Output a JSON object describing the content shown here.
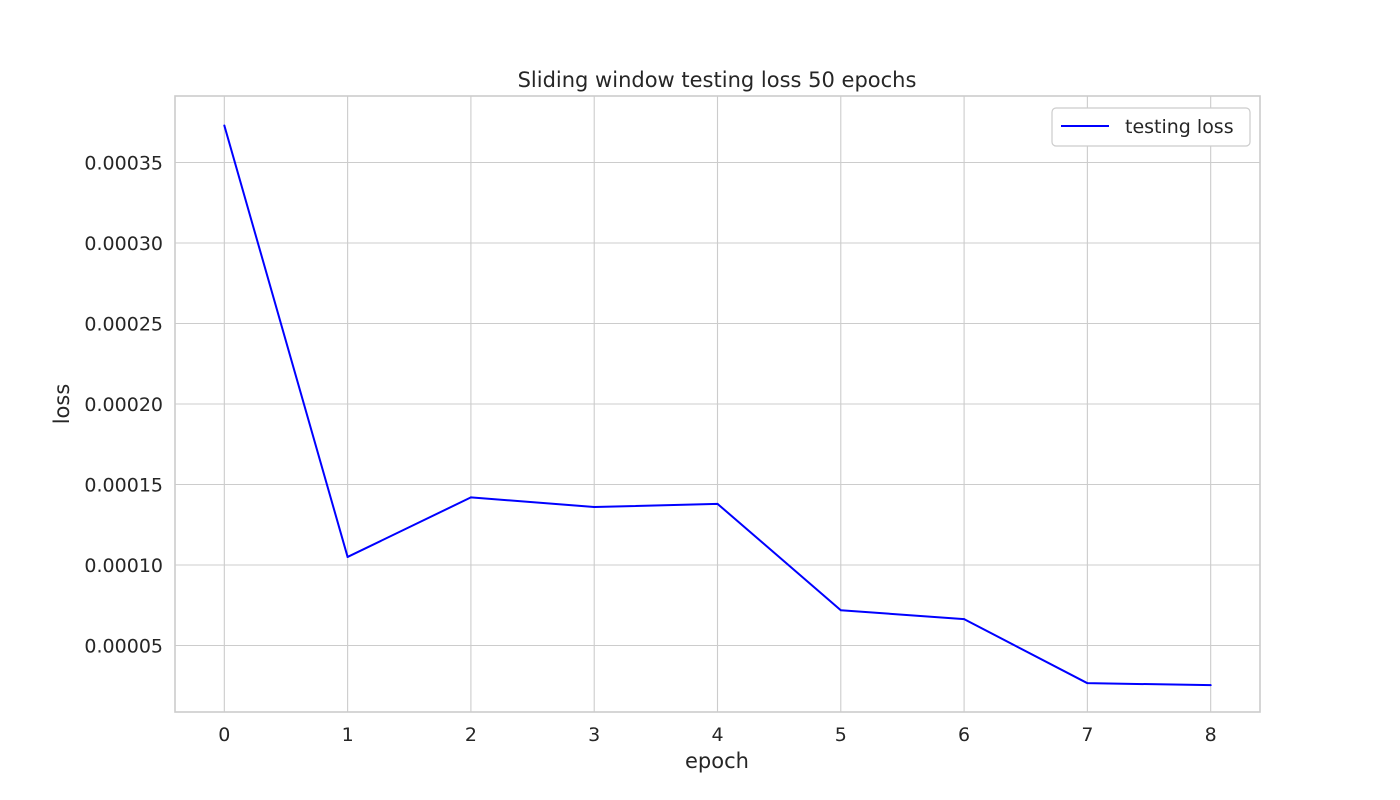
{
  "chart_data": {
    "type": "line",
    "title": "Sliding window testing loss 50 epochs",
    "xlabel": "epoch",
    "ylabel": "loss",
    "x": [
      0,
      1,
      2,
      3,
      4,
      5,
      6,
      7,
      8
    ],
    "xticks": [
      "0",
      "1",
      "2",
      "3",
      "4",
      "5",
      "6",
      "7",
      "8"
    ],
    "yticks": [
      "0.00005",
      "0.00010",
      "0.00015",
      "0.00020",
      "0.00025",
      "0.00030",
      "0.00035"
    ],
    "ytick_values": [
      5e-05,
      0.0001,
      0.00015,
      0.0002,
      0.00025,
      0.0003,
      0.00035
    ],
    "xlim": [
      -0.4,
      8.4
    ],
    "ylim": [
      8.7e-06,
      0.0003913
    ],
    "grid": true,
    "legend_position": "top-right",
    "series": [
      {
        "name": "testing loss",
        "color": "#0000ff",
        "values": [
          0.000373,
          0.000105,
          0.000142,
          0.000136,
          0.000138,
          7.19e-05,
          6.64e-05,
          2.66e-05,
          2.54e-05
        ]
      }
    ]
  }
}
